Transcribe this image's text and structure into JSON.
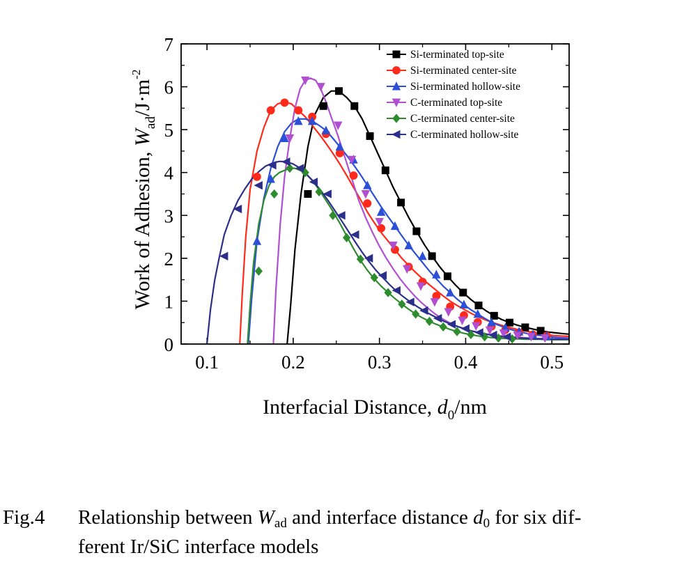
{
  "chart_data": {
    "type": "line",
    "xlabel_main": "Interfacial Distance, ",
    "xlabel_var": "d",
    "xlabel_sub": "0",
    "xlabel_unit": "/nm",
    "ylabel_main": "Work of Adhesion, ",
    "ylabel_var": "W",
    "ylabel_sub": "ad",
    "ylabel_unit": "/J·m",
    "ylabel_sup": "-2",
    "xlim": [
      0.07,
      0.52
    ],
    "ylim": [
      0,
      7
    ],
    "xticks": [
      "0.1",
      "0.2",
      "0.3",
      "0.4",
      "0.5"
    ],
    "xtick_values": [
      0.1,
      0.2,
      0.3,
      0.4,
      0.5
    ],
    "yticks": [
      "0",
      "1",
      "2",
      "3",
      "4",
      "5",
      "6",
      "7"
    ],
    "ytick_values": [
      0,
      1,
      2,
      3,
      4,
      5,
      6,
      7
    ],
    "legend_position": "top-right",
    "series": [
      {
        "name": "Si-terminated top-site",
        "color": "#000000",
        "marker": "square",
        "x": [
          0.193,
          0.197,
          0.202,
          0.209,
          0.217,
          0.225,
          0.235,
          0.244,
          0.253,
          0.262,
          0.271,
          0.28,
          0.289,
          0.298,
          0.307,
          0.316,
          0.325,
          0.334,
          0.343,
          0.352,
          0.361,
          0.37,
          0.379,
          0.388,
          0.397,
          0.406,
          0.415,
          0.424,
          0.433,
          0.442,
          0.451,
          0.46,
          0.469,
          0.478,
          0.487,
          0.496,
          0.505,
          0.514,
          0.52
        ],
        "y": [
          0,
          0.9,
          2.2,
          3.5,
          4.6,
          5.35,
          5.75,
          5.9,
          5.9,
          5.75,
          5.55,
          5.25,
          4.85,
          4.45,
          4.05,
          3.65,
          3.3,
          2.95,
          2.63,
          2.32,
          2.05,
          1.8,
          1.58,
          1.38,
          1.2,
          1.04,
          0.9,
          0.77,
          0.66,
          0.57,
          0.5,
          0.44,
          0.39,
          0.35,
          0.31,
          0.28,
          0.26,
          0.24,
          0.23
        ],
        "marker_x": [
          0.217,
          0.235,
          0.253,
          0.271,
          0.289,
          0.307,
          0.325,
          0.343,
          0.361,
          0.379,
          0.397,
          0.415,
          0.433,
          0.451,
          0.469,
          0.487
        ],
        "marker_y": [
          3.5,
          5.55,
          5.9,
          5.55,
          4.85,
          4.05,
          3.3,
          2.63,
          2.05,
          1.58,
          1.2,
          0.9,
          0.66,
          0.5,
          0.39,
          0.31
        ]
      },
      {
        "name": "Si-terminated center-site",
        "color": "#ff2a1a",
        "marker": "circle",
        "x": [
          0.138,
          0.141,
          0.145,
          0.15,
          0.158,
          0.166,
          0.174,
          0.182,
          0.19,
          0.198,
          0.206,
          0.214,
          0.222,
          0.23,
          0.238,
          0.246,
          0.254,
          0.262,
          0.27,
          0.278,
          0.286,
          0.294,
          0.302,
          0.31,
          0.318,
          0.326,
          0.334,
          0.342,
          0.35,
          0.358,
          0.366,
          0.374,
          0.382,
          0.39,
          0.398,
          0.406,
          0.414,
          0.422,
          0.43,
          0.438,
          0.446,
          0.454,
          0.462,
          0.47,
          0.478,
          0.486,
          0.494,
          0.502,
          0.51,
          0.518,
          0.52
        ],
        "y": [
          0,
          1.2,
          2.5,
          3.6,
          4.5,
          5.05,
          5.45,
          5.6,
          5.65,
          5.6,
          5.45,
          5.3,
          5.1,
          4.9,
          4.68,
          4.45,
          4.2,
          3.93,
          3.65,
          3.37,
          3.08,
          2.83,
          2.6,
          2.4,
          2.2,
          2.0,
          1.83,
          1.67,
          1.52,
          1.38,
          1.25,
          1.12,
          1.0,
          0.9,
          0.81,
          0.72,
          0.64,
          0.57,
          0.51,
          0.46,
          0.41,
          0.37,
          0.33,
          0.3,
          0.27,
          0.24,
          0.22,
          0.2,
          0.19,
          0.18,
          0.18
        ],
        "marker_x": [
          0.158,
          0.174,
          0.19,
          0.206,
          0.222,
          0.238,
          0.254,
          0.27,
          0.286,
          0.302,
          0.318,
          0.334,
          0.35,
          0.366,
          0.382,
          0.398,
          0.414,
          0.43,
          0.446,
          0.462,
          0.478,
          0.494
        ],
        "marker_y": [
          3.9,
          5.45,
          5.63,
          5.45,
          5.3,
          4.9,
          4.45,
          3.93,
          3.28,
          2.7,
          2.2,
          1.8,
          1.45,
          1.12,
          0.87,
          0.67,
          0.51,
          0.41,
          0.33,
          0.27,
          0.22,
          0.19
        ]
      },
      {
        "name": "Si-terminated hollow-site",
        "color": "#2b4fd6",
        "marker": "triangle-up",
        "x": [
          0.148,
          0.152,
          0.158,
          0.166,
          0.174,
          0.182,
          0.19,
          0.198,
          0.206,
          0.214,
          0.222,
          0.23,
          0.238,
          0.246,
          0.254,
          0.262,
          0.27,
          0.278,
          0.286,
          0.294,
          0.302,
          0.31,
          0.318,
          0.326,
          0.334,
          0.342,
          0.35,
          0.358,
          0.366,
          0.374,
          0.382,
          0.39,
          0.398,
          0.406,
          0.414,
          0.422,
          0.43,
          0.438,
          0.446,
          0.454,
          0.462,
          0.47,
          0.478,
          0.486,
          0.494,
          0.502,
          0.51,
          0.518,
          0.52
        ],
        "y": [
          0,
          1.1,
          2.4,
          3.4,
          4.1,
          4.6,
          4.95,
          5.15,
          5.25,
          5.25,
          5.2,
          5.1,
          4.98,
          4.8,
          4.6,
          4.4,
          4.18,
          3.95,
          3.7,
          3.45,
          3.2,
          2.97,
          2.75,
          2.52,
          2.3,
          2.1,
          1.9,
          1.7,
          1.52,
          1.35,
          1.2,
          1.05,
          0.92,
          0.8,
          0.7,
          0.6,
          0.51,
          0.44,
          0.38,
          0.33,
          0.29,
          0.25,
          0.22,
          0.2,
          0.18,
          0.16,
          0.15,
          0.14,
          0.14
        ],
        "marker_x": [
          0.158,
          0.174,
          0.19,
          0.206,
          0.222,
          0.238,
          0.254,
          0.27,
          0.286,
          0.302,
          0.318,
          0.334,
          0.35,
          0.366,
          0.382,
          0.398,
          0.414,
          0.43,
          0.446,
          0.462,
          0.478,
          0.494
        ],
        "marker_y": [
          2.4,
          3.85,
          4.8,
          5.2,
          5.2,
          4.98,
          4.6,
          4.3,
          3.7,
          3.08,
          2.75,
          2.3,
          2.05,
          1.62,
          1.2,
          0.92,
          0.7,
          0.51,
          0.38,
          0.29,
          0.22,
          0.18
        ]
      },
      {
        "name": "C-terminated top-site",
        "color": "#b04fd0",
        "marker": "triangle-down",
        "x": [
          0.177,
          0.18,
          0.185,
          0.19,
          0.196,
          0.202,
          0.208,
          0.214,
          0.22,
          0.226,
          0.232,
          0.238,
          0.244,
          0.252,
          0.26,
          0.268,
          0.276,
          0.284,
          0.292,
          0.3,
          0.308,
          0.316,
          0.324,
          0.332,
          0.34,
          0.348,
          0.356,
          0.364,
          0.372,
          0.38,
          0.388,
          0.396,
          0.404,
          0.412,
          0.42,
          0.428,
          0.436,
          0.444,
          0.452,
          0.46,
          0.468,
          0.476,
          0.484,
          0.492,
          0.5,
          0.51,
          0.52
        ],
        "y": [
          0,
          1.3,
          2.8,
          3.9,
          4.8,
          5.5,
          5.95,
          6.15,
          6.2,
          6.15,
          5.95,
          5.65,
          5.3,
          4.85,
          4.35,
          3.85,
          3.35,
          2.95,
          2.6,
          2.28,
          2.0,
          1.75,
          1.52,
          1.32,
          1.14,
          0.98,
          0.84,
          0.71,
          0.6,
          0.51,
          0.43,
          0.37,
          0.32,
          0.28,
          0.25,
          0.22,
          0.2,
          0.18,
          0.17,
          0.16,
          0.15,
          0.14,
          0.13,
          0.13,
          0.12,
          0.12,
          0.12
        ],
        "marker_x": [
          0.196,
          0.214,
          0.232,
          0.252,
          0.268,
          0.284,
          0.3,
          0.316,
          0.332,
          0.348,
          0.364,
          0.38,
          0.396,
          0.412,
          0.428,
          0.444,
          0.46,
          0.476,
          0.492
        ],
        "marker_y": [
          4.8,
          6.15,
          6.0,
          5.1,
          4.3,
          3.5,
          2.85,
          2.3,
          1.75,
          1.35,
          0.98,
          0.75,
          0.55,
          0.42,
          0.32,
          0.25,
          0.2,
          0.17,
          0.14
        ]
      },
      {
        "name": "C-terminated center-site",
        "color": "#2e8b2e",
        "marker": "diamond",
        "x": [
          0.147,
          0.15,
          0.154,
          0.16,
          0.166,
          0.172,
          0.178,
          0.184,
          0.19,
          0.196,
          0.202,
          0.208,
          0.214,
          0.222,
          0.23,
          0.238,
          0.246,
          0.254,
          0.262,
          0.27,
          0.278,
          0.286,
          0.294,
          0.302,
          0.31,
          0.318,
          0.326,
          0.334,
          0.342,
          0.35,
          0.358,
          0.366,
          0.374,
          0.382,
          0.39,
          0.398,
          0.406,
          0.414,
          0.422,
          0.43,
          0.438,
          0.446,
          0.454,
          0.462,
          0.47,
          0.478,
          0.486,
          0.494,
          0.502,
          0.51,
          0.52
        ],
        "y": [
          0,
          0.9,
          1.9,
          2.8,
          3.35,
          3.7,
          3.9,
          4.0,
          4.05,
          4.1,
          4.1,
          4.05,
          3.98,
          3.82,
          3.6,
          3.35,
          3.1,
          2.82,
          2.52,
          2.22,
          1.95,
          1.72,
          1.52,
          1.35,
          1.2,
          1.06,
          0.93,
          0.81,
          0.7,
          0.61,
          0.53,
          0.46,
          0.4,
          0.34,
          0.29,
          0.25,
          0.22,
          0.19,
          0.17,
          0.15,
          0.14,
          0.13,
          0.12,
          0.12,
          0.11,
          0.11,
          0.11,
          0.1,
          0.1,
          0.1,
          0.1
        ],
        "marker_x": [
          0.16,
          0.178,
          0.196,
          0.214,
          0.23,
          0.246,
          0.262,
          0.278,
          0.294,
          0.31,
          0.326,
          0.342,
          0.358,
          0.374,
          0.39,
          0.406,
          0.422,
          0.438,
          0.454
        ],
        "marker_y": [
          1.7,
          3.5,
          4.1,
          4.0,
          3.55,
          3.0,
          2.48,
          1.98,
          1.55,
          1.2,
          0.93,
          0.7,
          0.53,
          0.4,
          0.29,
          0.22,
          0.17,
          0.14,
          0.12
        ]
      },
      {
        "name": "C-terminated hollow-site",
        "color": "#2b2f8a",
        "marker": "triangle-left",
        "x": [
          0.1,
          0.104,
          0.109,
          0.114,
          0.12,
          0.128,
          0.136,
          0.144,
          0.152,
          0.16,
          0.168,
          0.176,
          0.184,
          0.192,
          0.2,
          0.208,
          0.216,
          0.224,
          0.232,
          0.24,
          0.248,
          0.256,
          0.264,
          0.272,
          0.28,
          0.288,
          0.296,
          0.304,
          0.312,
          0.32,
          0.328,
          0.336,
          0.344,
          0.352,
          0.36,
          0.368,
          0.376,
          0.384,
          0.392,
          0.4,
          0.408,
          0.416,
          0.424,
          0.432,
          0.44,
          0.448,
          0.456,
          0.464,
          0.472,
          0.48,
          0.49,
          0.5,
          0.51,
          0.52
        ],
        "y": [
          0,
          0.8,
          1.5,
          2.0,
          2.55,
          3.0,
          3.35,
          3.62,
          3.85,
          4.02,
          4.15,
          4.22,
          4.26,
          4.25,
          4.2,
          4.1,
          3.95,
          3.78,
          3.58,
          3.36,
          3.12,
          2.88,
          2.63,
          2.38,
          2.14,
          1.92,
          1.72,
          1.55,
          1.38,
          1.23,
          1.1,
          0.98,
          0.87,
          0.77,
          0.68,
          0.6,
          0.52,
          0.46,
          0.4,
          0.35,
          0.3,
          0.26,
          0.23,
          0.2,
          0.18,
          0.16,
          0.15,
          0.14,
          0.13,
          0.12,
          0.12,
          0.11,
          0.11,
          0.11
        ],
        "marker_x": [
          0.12,
          0.136,
          0.16,
          0.176,
          0.192,
          0.208,
          0.224,
          0.24,
          0.256,
          0.272,
          0.288,
          0.304,
          0.32,
          0.336,
          0.352,
          0.368,
          0.384,
          0.4,
          0.416,
          0.432,
          0.448
        ],
        "marker_y": [
          2.05,
          3.15,
          3.7,
          4.17,
          4.25,
          4.1,
          3.78,
          3.5,
          3.0,
          2.55,
          2.0,
          1.6,
          1.25,
          0.98,
          0.78,
          0.6,
          0.46,
          0.36,
          0.27,
          0.21,
          0.17
        ]
      }
    ]
  },
  "caption": {
    "label": "Fig.4",
    "text_before": "Relationship between ",
    "var1": "W",
    "var1_sub": "ad",
    "text_mid": " and interface distance ",
    "var2": "d",
    "var2_sub": "0",
    "text_after": " for six dif-",
    "line2": "ferent Ir/SiC interface models"
  }
}
